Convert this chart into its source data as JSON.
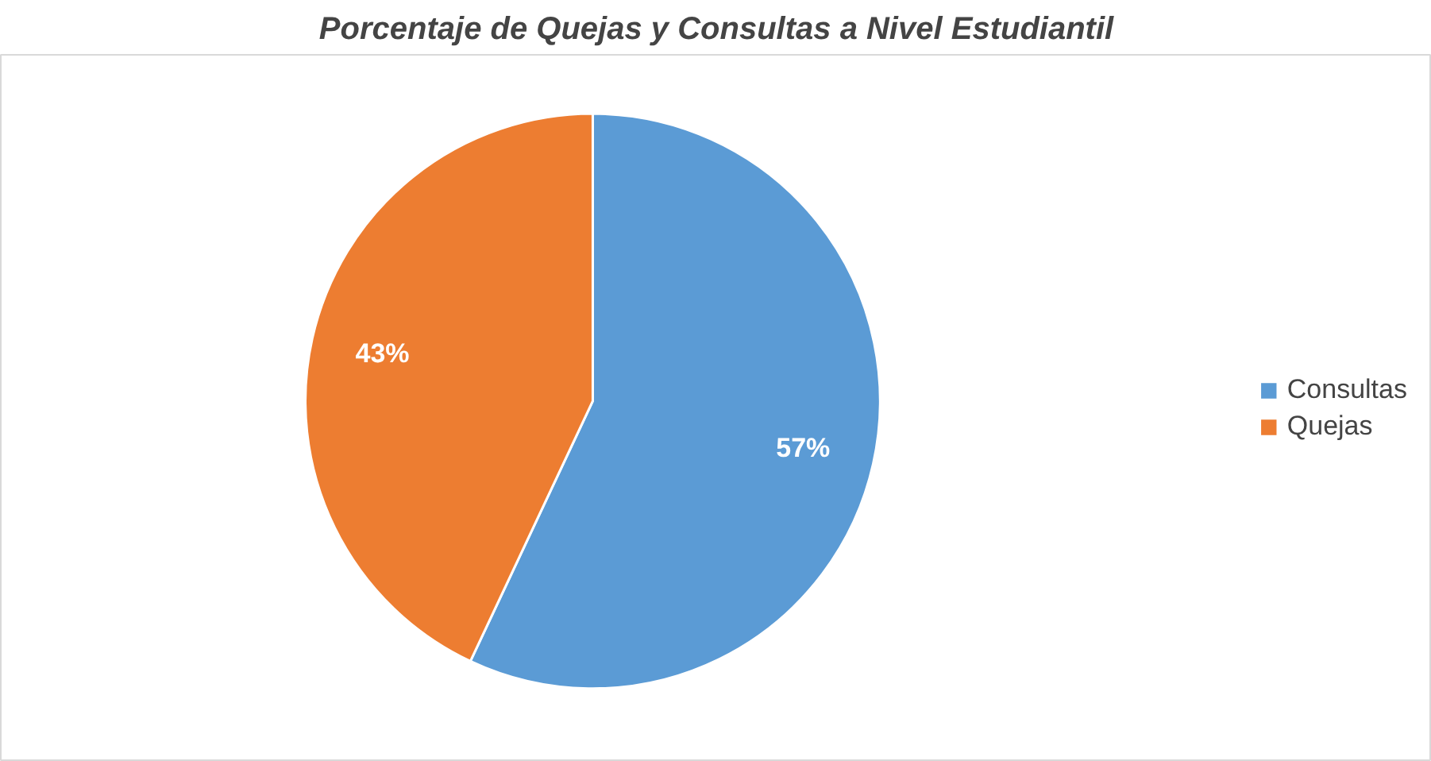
{
  "chart_data": {
    "type": "pie",
    "title": "Porcentaje de Quejas y Consultas a Nivel Estudiantil",
    "categories": [
      "Consultas",
      "Quejas"
    ],
    "values": [
      57,
      43
    ],
    "colors": [
      "#5b9bd5",
      "#ed7d31"
    ],
    "value_labels": [
      "57%",
      "43%"
    ],
    "legend": "right"
  }
}
